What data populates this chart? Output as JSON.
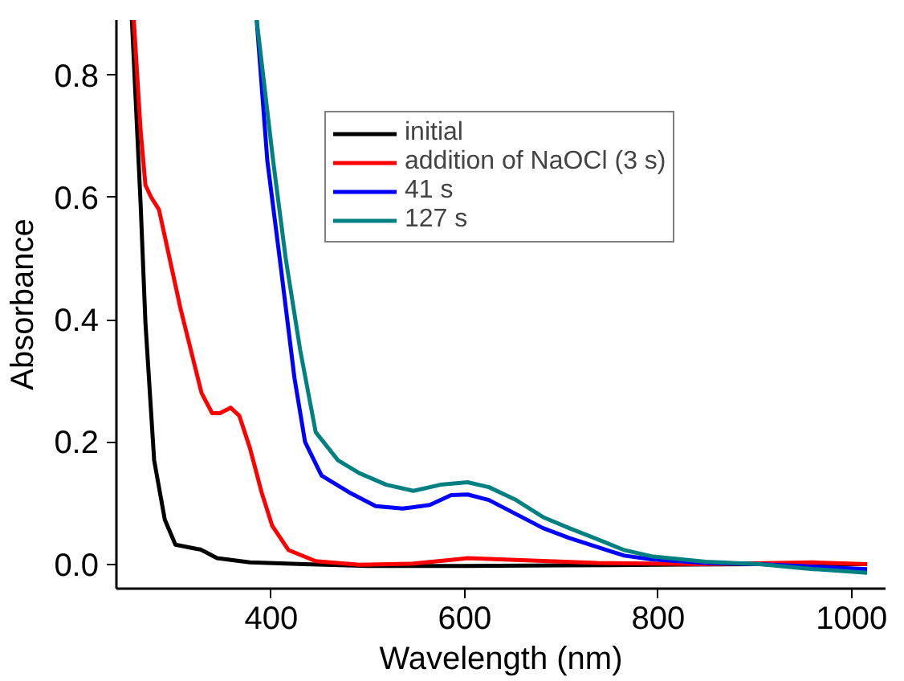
{
  "chart_data": {
    "type": "line",
    "xlabel": "Wavelength (nm)",
    "ylabel": "Absorbance",
    "xlim": [
      240,
      1035
    ],
    "ylim": [
      -0.04,
      0.89
    ],
    "xticks": [
      400,
      600,
      800,
      1000
    ],
    "yticks": [
      {
        "value": 0,
        "label": "0.0"
      },
      {
        "value": 0.2,
        "label": "0.2"
      },
      {
        "value": 0.4,
        "label": "0.4"
      },
      {
        "value": 0.6,
        "label": "0.6"
      },
      {
        "value": 0.8,
        "label": "0.8"
      }
    ],
    "grid": false,
    "legend": "top right",
    "marker": "none",
    "line_style": "solid",
    "series": [
      {
        "name": "initial",
        "color": "#000000",
        "x": [
          256,
          265,
          270,
          279,
          290,
          301,
          323,
          327,
          344,
          378,
          434,
          500,
          600,
          700,
          800,
          900,
          1016
        ],
        "values": [
          0.89,
          0.59,
          0.395,
          0.17,
          0.073,
          0.032,
          0.025,
          0.024,
          0.01,
          0.003,
          0.0,
          -0.003,
          -0.003,
          -0.002,
          -0.001,
          0.0,
          0.0
        ]
      },
      {
        "name": "addition of NaOCl (3 s)",
        "color": "#ff0000",
        "x": [
          258,
          265,
          270,
          276,
          284,
          295,
          306,
          317,
          328,
          339,
          347,
          358,
          367,
          378,
          390,
          401,
          418,
          446,
          491,
          547,
          592,
          603,
          653,
          737,
          849,
          960,
          1016
        ],
        "values": [
          0.89,
          0.71,
          0.62,
          0.6,
          0.58,
          0.5,
          0.42,
          0.35,
          0.28,
          0.247,
          0.247,
          0.256,
          0.243,
          0.19,
          0.118,
          0.063,
          0.023,
          0.005,
          -0.001,
          0.001,
          0.008,
          0.01,
          0.007,
          0.002,
          0.0,
          0.003,
          0.0
        ]
      },
      {
        "name": "41 s",
        "color": "#0000ff",
        "x": [
          385,
          396,
          410,
          424,
          435,
          452,
          480,
          508,
          536,
          564,
          586,
          603,
          625,
          653,
          681,
          708,
          737,
          765,
          793,
          849,
          905,
          960,
          1016
        ],
        "values": [
          0.89,
          0.66,
          0.485,
          0.305,
          0.2,
          0.145,
          0.118,
          0.095,
          0.091,
          0.097,
          0.113,
          0.114,
          0.105,
          0.082,
          0.059,
          0.043,
          0.028,
          0.014,
          0.008,
          0.002,
          0.0,
          -0.004,
          -0.008
        ]
      },
      {
        "name": "127 s",
        "color": "#008080",
        "x": [
          385,
          402,
          415,
          430,
          446,
          469,
          491,
          519,
          547,
          575,
          603,
          625,
          653,
          681,
          708,
          737,
          765,
          793,
          849,
          905,
          960,
          1016
        ],
        "values": [
          0.89,
          0.66,
          0.5,
          0.35,
          0.216,
          0.17,
          0.149,
          0.13,
          0.12,
          0.13,
          0.134,
          0.126,
          0.105,
          0.077,
          0.059,
          0.041,
          0.023,
          0.013,
          0.004,
          0.0,
          -0.008,
          -0.014
        ]
      }
    ]
  }
}
